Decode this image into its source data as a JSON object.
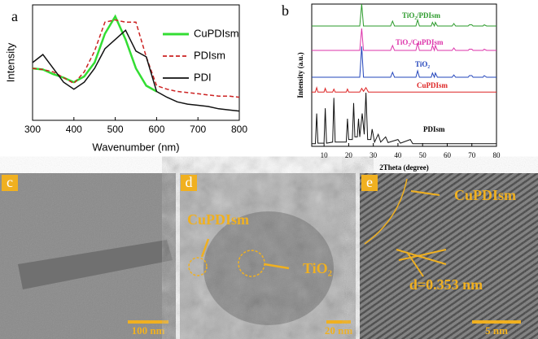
{
  "chart_data": [
    {
      "type": "line",
      "panel_label": "a",
      "xlabel": "Wavenumber (nm)",
      "ylabel": "Intensity",
      "x": [
        300,
        325,
        350,
        375,
        400,
        425,
        450,
        475,
        500,
        525,
        550,
        575,
        600,
        625,
        650,
        675,
        700,
        725,
        750,
        775,
        800
      ],
      "xlim": [
        300,
        800
      ],
      "xticks": [
        300,
        400,
        500,
        600,
        700,
        800
      ],
      "ylim": [
        0,
        1
      ],
      "legend": "upper-right",
      "series": [
        {
          "name": "CuPDIsm",
          "color": "#33dd33",
          "style": "solid",
          "values": [
            0.45,
            0.44,
            0.4,
            0.37,
            0.33,
            0.38,
            0.5,
            0.75,
            0.9,
            0.7,
            0.45,
            0.3,
            0.25,
            null,
            null,
            null,
            null,
            null,
            null,
            null,
            null
          ]
        },
        {
          "name": "PDIsm",
          "color": "#cc2222",
          "style": "dashed",
          "values": [
            0.45,
            0.44,
            0.42,
            0.37,
            0.32,
            0.42,
            0.6,
            0.85,
            0.87,
            0.85,
            0.85,
            0.55,
            0.3,
            0.27,
            0.25,
            0.24,
            0.23,
            0.22,
            0.21,
            0.21,
            0.2
          ]
        },
        {
          "name": "PDI",
          "color": "#111111",
          "style": "solid",
          "values": [
            0.5,
            0.57,
            0.45,
            0.33,
            0.27,
            0.33,
            0.45,
            0.62,
            0.7,
            0.78,
            0.6,
            0.55,
            0.25,
            0.2,
            0.16,
            0.14,
            0.13,
            0.12,
            0.1,
            0.09,
            0.08
          ]
        }
      ]
    },
    {
      "type": "line",
      "panel_label": "b",
      "xlabel": "2Theta (degree)",
      "ylabel": "Intensity (a.u.)",
      "xlim": [
        5,
        80
      ],
      "xticks": [
        10,
        20,
        30,
        40,
        50,
        60,
        70,
        80
      ],
      "ylim": [
        0,
        1
      ],
      "series": [
        {
          "name": "TiO₂/PDIsm",
          "color": "#2a9a2a",
          "x": [
            5,
            24.5,
            25.3,
            26,
            37,
            37.8,
            38.6,
            47.3,
            48,
            48.7,
            53.5,
            54,
            54.8,
            55.2,
            56,
            62,
            62.7,
            63.4,
            68.5,
            69,
            70,
            70.5,
            74.5,
            75,
            76,
            80
          ],
          "values": [
            0.1,
            0.1,
            1,
            0.1,
            0.1,
            0.3,
            0.1,
            0.1,
            0.35,
            0.1,
            0.1,
            0.25,
            0.1,
            0.25,
            0.1,
            0.1,
            0.2,
            0.1,
            0.1,
            0.15,
            0.15,
            0.1,
            0.1,
            0.15,
            0.1,
            0.1
          ]
        },
        {
          "name": "TiO₂/CuPDIsm",
          "color": "#dd33aa",
          "x": [
            5,
            24.5,
            25.3,
            26,
            37,
            37.8,
            38.6,
            47.3,
            48,
            48.7,
            53.5,
            54,
            54.8,
            55.2,
            56,
            62,
            62.7,
            63.4,
            68.5,
            69,
            70,
            70.5,
            74.5,
            75,
            76,
            80
          ],
          "values": [
            0.1,
            0.1,
            1,
            0.1,
            0.1,
            0.3,
            0.1,
            0.1,
            0.4,
            0.1,
            0.1,
            0.3,
            0.1,
            0.3,
            0.1,
            0.1,
            0.2,
            0.1,
            0.1,
            0.15,
            0.15,
            0.1,
            0.1,
            0.15,
            0.1,
            0.1
          ]
        },
        {
          "name": "TiO₂",
          "color": "#2244bb",
          "x": [
            5,
            24.5,
            25.3,
            26,
            37,
            37.8,
            38.6,
            47.3,
            48,
            48.7,
            53.5,
            54,
            54.8,
            55.2,
            56,
            62,
            62.7,
            63.4,
            68.5,
            69,
            70,
            70.5,
            74.5,
            75,
            76,
            80
          ],
          "values": [
            0.05,
            0.05,
            1,
            0.05,
            0.05,
            0.2,
            0.05,
            0.05,
            0.25,
            0.05,
            0.05,
            0.18,
            0.05,
            0.18,
            0.05,
            0.05,
            0.12,
            0.05,
            0.05,
            0.1,
            0.1,
            0.05,
            0.05,
            0.1,
            0.05,
            0.05
          ]
        },
        {
          "name": "CuPDIsm",
          "color": "#dd2222",
          "x": [
            5,
            6.5,
            7,
            7.5,
            10,
            10.5,
            11,
            13.5,
            14,
            14.5,
            19,
            19.5,
            20,
            24.5,
            25.3,
            26,
            27,
            28,
            35,
            80
          ],
          "values": [
            0.1,
            0.1,
            0.4,
            0.1,
            0.1,
            0.35,
            0.1,
            0.1,
            0.3,
            0.1,
            0.1,
            0.3,
            0.1,
            0.1,
            0.35,
            0.15,
            0.4,
            0.1,
            0.1,
            0.1
          ]
        },
        {
          "name": "PDIsm",
          "color": "#111111",
          "x": [
            5,
            6.5,
            7,
            7.5,
            10,
            10.5,
            11,
            13.5,
            14,
            14.5,
            19,
            19.5,
            20,
            21.5,
            22,
            22.5,
            23.5,
            24,
            24.5,
            25.5,
            26.3,
            27,
            27.7,
            29,
            29.5,
            30.5,
            32,
            33,
            35,
            36,
            40,
            41,
            45,
            46,
            50,
            80
          ],
          "values": [
            0.02,
            0.02,
            0.6,
            0.03,
            0.03,
            0.7,
            0.03,
            0.05,
            0.9,
            0.05,
            0.05,
            0.5,
            0.1,
            0.1,
            0.8,
            0.15,
            0.15,
            0.5,
            0.15,
            0.6,
            0.2,
            1,
            0.1,
            0.1,
            0.3,
            0.05,
            0.2,
            0.05,
            0.15,
            0.04,
            0.1,
            0.03,
            0.1,
            0.02,
            0.02,
            0.02
          ]
        }
      ]
    }
  ],
  "images": [
    {
      "label": "c",
      "scale_bar": "100 nm"
    },
    {
      "label": "d",
      "annotations": [
        "CuPDIsm",
        "TiO₂"
      ],
      "scale_bar": "20 nm"
    },
    {
      "label": "e",
      "annotations": [
        "CuPDIsm",
        "d=0.353 nm"
      ],
      "scale_bar": "5 nm"
    }
  ]
}
